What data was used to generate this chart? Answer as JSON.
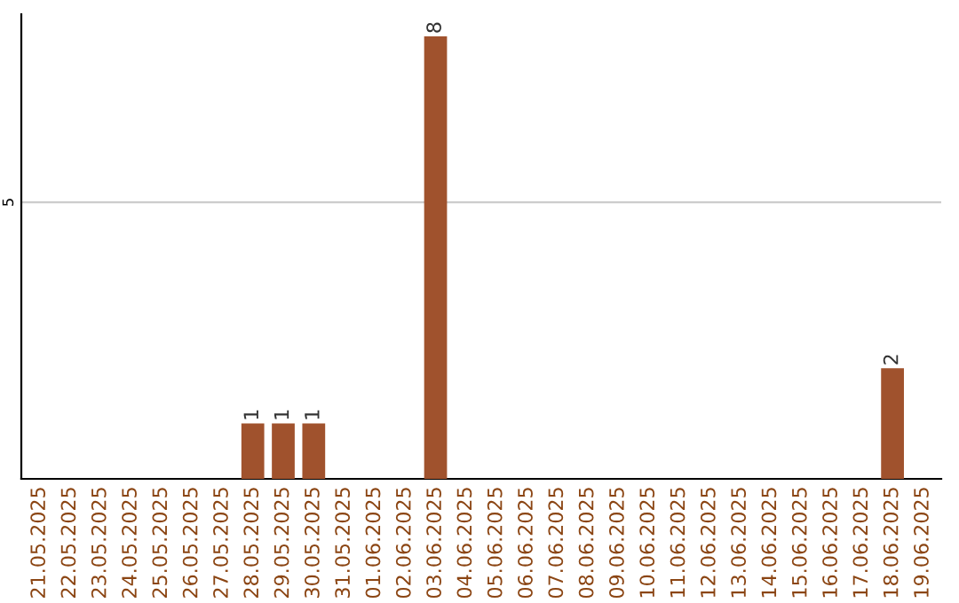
{
  "chart_data": {
    "type": "bar",
    "categories": [
      "21.05.2025",
      "22.05.2025",
      "23.05.2025",
      "24.05.2025",
      "25.05.2025",
      "26.05.2025",
      "27.05.2025",
      "28.05.2025",
      "29.05.2025",
      "30.05.2025",
      "31.05.2025",
      "01.06.2025",
      "02.06.2025",
      "03.06.2025",
      "04.06.2025",
      "05.06.2025",
      "06.06.2025",
      "07.06.2025",
      "08.06.2025",
      "09.06.2025",
      "10.06.2025",
      "11.06.2025",
      "12.06.2025",
      "13.06.2025",
      "14.06.2025",
      "15.06.2025",
      "16.06.2025",
      "17.06.2025",
      "18.06.2025",
      "19.06.2025"
    ],
    "values": [
      0,
      0,
      0,
      0,
      0,
      0,
      0,
      1,
      1,
      1,
      0,
      0,
      0,
      8,
      0,
      0,
      0,
      0,
      0,
      0,
      0,
      0,
      0,
      0,
      0,
      0,
      0,
      0,
      2,
      0
    ],
    "value_labels": [
      null,
      null,
      null,
      null,
      null,
      null,
      null,
      "1",
      "1",
      "1",
      null,
      null,
      null,
      "8",
      null,
      null,
      null,
      null,
      null,
      null,
      null,
      null,
      null,
      null,
      null,
      null,
      null,
      null,
      "2",
      null
    ],
    "color": "#a0522d",
    "ylim": [
      0,
      8.4
    ],
    "yticks": [
      5
    ],
    "grid": "y"
  }
}
